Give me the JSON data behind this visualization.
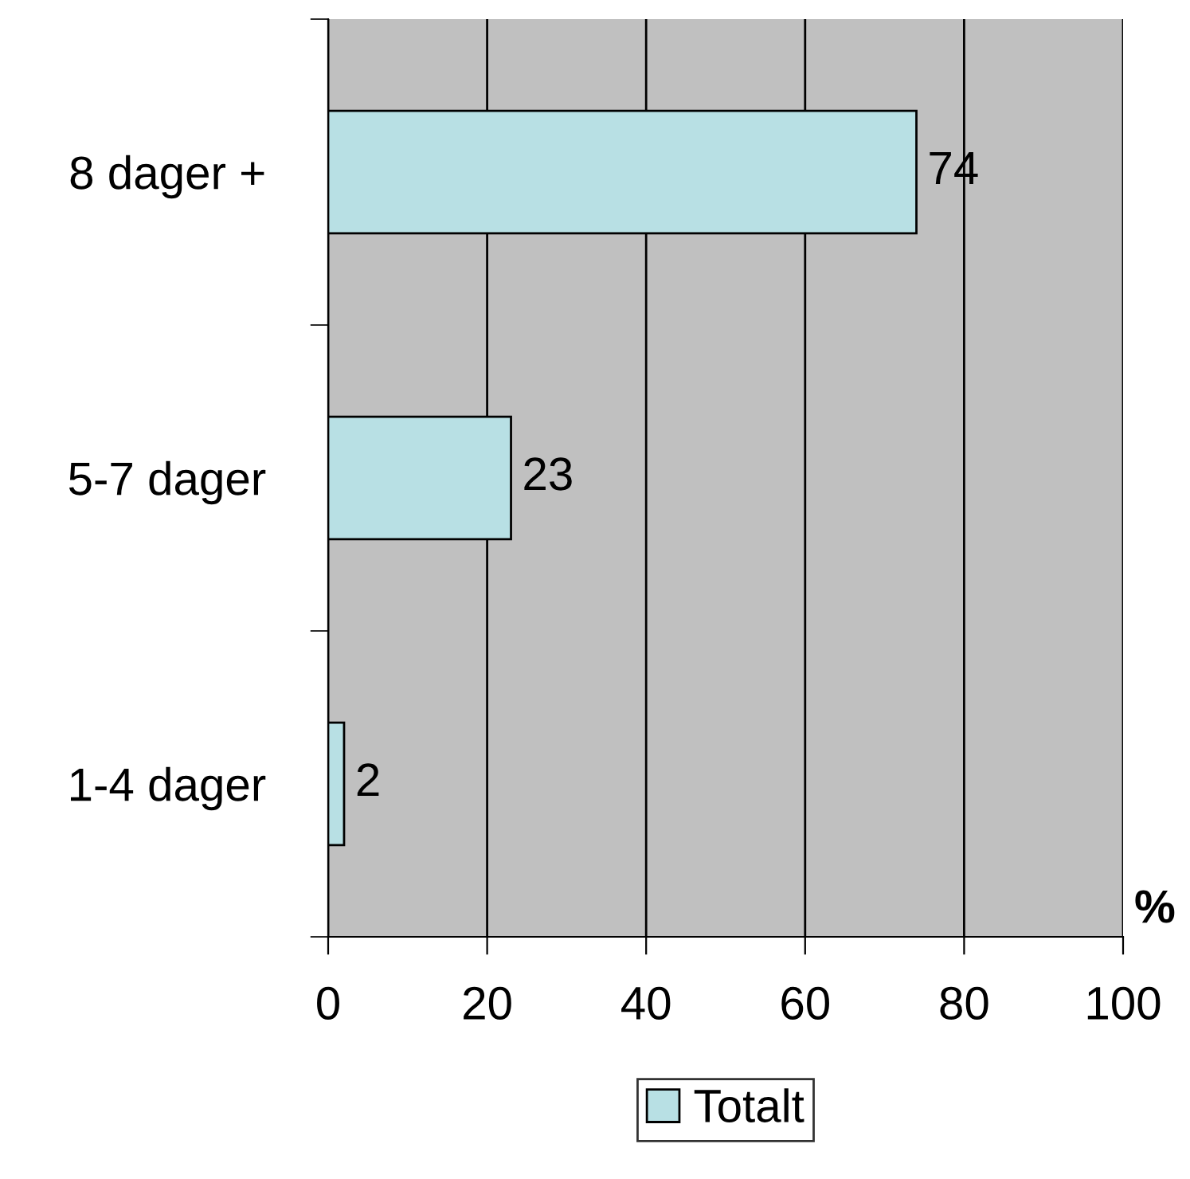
{
  "chart_data": {
    "type": "bar",
    "orientation": "horizontal",
    "categories": [
      "8 dager +",
      "5-7 dager",
      "1-4 dager"
    ],
    "series": [
      {
        "name": "Totalt",
        "color": "#b8e0e4",
        "values": [
          74,
          23,
          2
        ]
      }
    ],
    "xlabel": "%",
    "xlim": [
      0,
      100
    ],
    "xticks": [
      0,
      20,
      40,
      60,
      80,
      100
    ],
    "grid": "x",
    "data_labels": true,
    "legend": "bottom"
  }
}
